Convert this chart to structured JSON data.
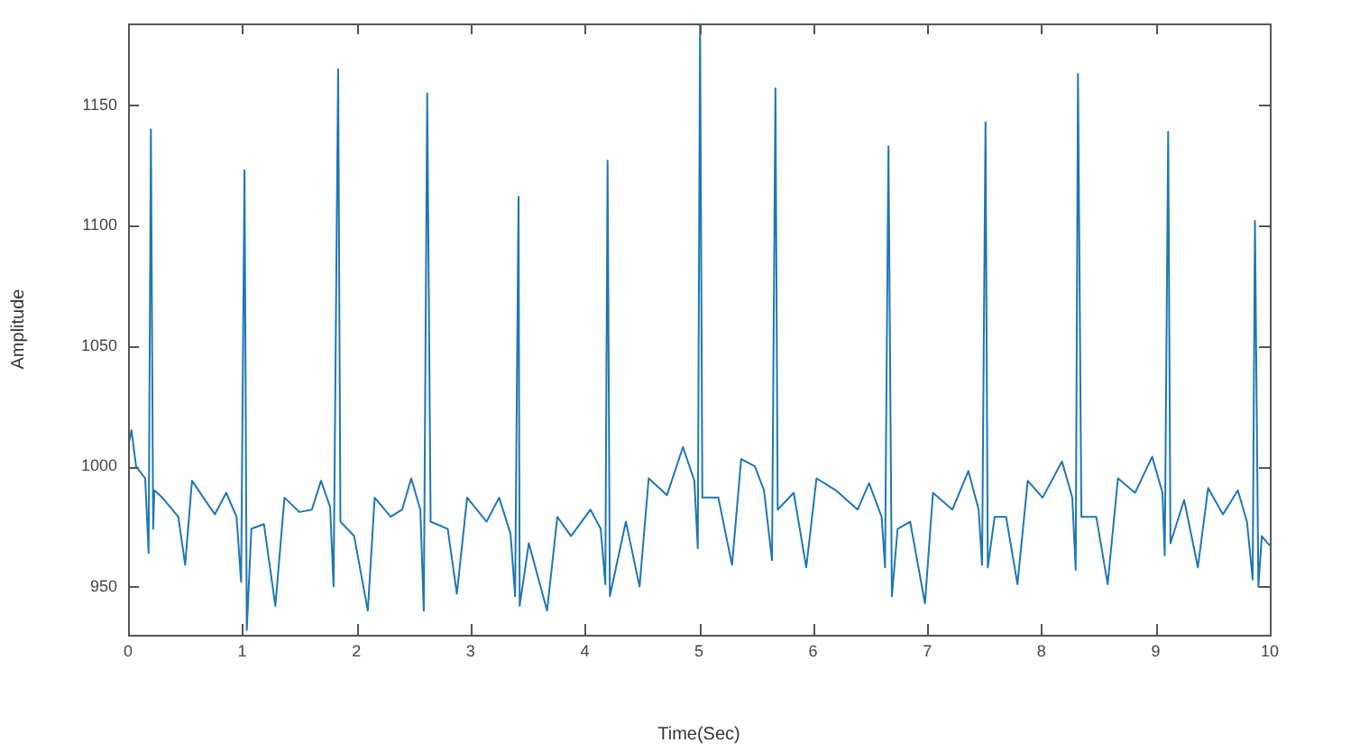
{
  "chart_data": {
    "type": "line",
    "xlabel": "Time(Sec)",
    "ylabel": "Amplitude",
    "xlim": [
      0,
      10
    ],
    "ylim": [
      930,
      1184
    ],
    "xticks": [
      0,
      1,
      2,
      3,
      4,
      5,
      6,
      7,
      8,
      9,
      10
    ],
    "yticks": [
      950,
      1000,
      1050,
      1100,
      1150
    ],
    "grid": false,
    "legend": false,
    "marker": "none",
    "line_style": "solid",
    "series": [
      {
        "color": "#1f77b4",
        "x": [
          0,
          0.03,
          0.07,
          0.15,
          0.18,
          0.2,
          0.22,
          0.23,
          0.3,
          0.44,
          0.5,
          0.56,
          0.66,
          0.76,
          0.86,
          0.95,
          0.99,
          1.02,
          1.04,
          1.08,
          1.19,
          1.29,
          1.37,
          1.5,
          1.61,
          1.69,
          1.77,
          1.8,
          1.84,
          1.86,
          1.98,
          2.1,
          2.16,
          2.3,
          2.4,
          2.48,
          2.56,
          2.59,
          2.62,
          2.65,
          2.8,
          2.88,
          2.97,
          3.14,
          3.25,
          3.35,
          3.39,
          3.42,
          3.43,
          3.51,
          3.67,
          3.76,
          3.88,
          4.05,
          4.14,
          4.18,
          4.2,
          4.22,
          4.36,
          4.48,
          4.56,
          4.72,
          4.86,
          4.96,
          4.99,
          5.01,
          5.03,
          5.17,
          5.29,
          5.37,
          5.49,
          5.57,
          5.64,
          5.67,
          5.69,
          5.83,
          5.94,
          6.03,
          6.2,
          6.39,
          6.49,
          6.6,
          6.63,
          6.66,
          6.69,
          6.74,
          6.85,
          6.98,
          7.05,
          7.22,
          7.36,
          7.45,
          7.48,
          7.51,
          7.53,
          7.59,
          7.69,
          7.79,
          7.88,
          8.01,
          8.18,
          8.27,
          8.3,
          8.32,
          8.35,
          8.48,
          8.58,
          8.67,
          8.82,
          8.97,
          9.06,
          9.08,
          9.11,
          9.13,
          9.25,
          9.37,
          9.46,
          9.59,
          9.72,
          9.8,
          9.85,
          9.87,
          9.9,
          9.93,
          10
        ],
        "values": [
          1008,
          1015,
          1000,
          995,
          964,
          1140,
          974,
          990,
          987,
          979,
          959,
          994,
          987,
          980,
          989,
          979,
          952,
          1123,
          932,
          974,
          976,
          942,
          987,
          981,
          982,
          994,
          983,
          950,
          1165,
          977,
          971,
          940,
          987,
          979,
          982,
          995,
          982,
          940,
          1155,
          977,
          974,
          947,
          987,
          977,
          987,
          972,
          946,
          1112,
          942,
          968,
          940,
          979,
          971,
          982,
          974,
          951,
          1127,
          946,
          977,
          950,
          995,
          988,
          1008,
          994,
          966,
          1184,
          987,
          987,
          959,
          1003,
          1000,
          990,
          961,
          1157,
          982,
          989,
          958,
          995,
          990,
          982,
          993,
          979,
          958,
          1133,
          946,
          974,
          977,
          943,
          989,
          982,
          998,
          982,
          959,
          1143,
          958,
          979,
          979,
          951,
          994,
          987,
          1002,
          987,
          957,
          1163,
          979,
          979,
          951,
          995,
          989,
          1004,
          989,
          963,
          1139,
          968,
          986,
          958,
          991,
          980,
          990,
          977,
          953,
          1102,
          950,
          971,
          967
        ]
      }
    ]
  }
}
